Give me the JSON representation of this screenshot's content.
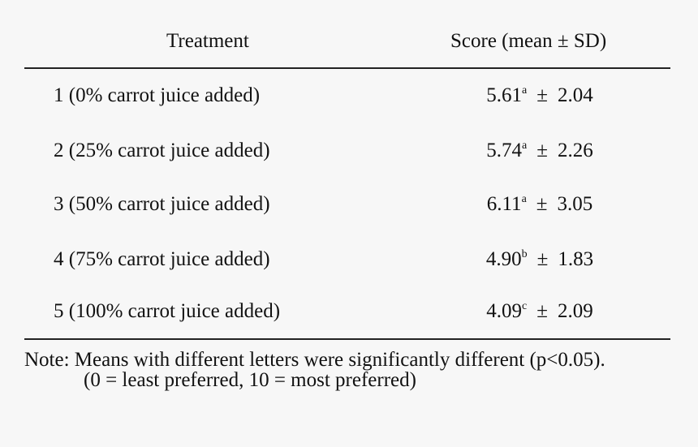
{
  "table": {
    "headers": [
      "Treatment",
      "Score (mean ± SD)"
    ],
    "plus_minus": "±",
    "rows": [
      {
        "treatment": "1 (0% carrot juice added)",
        "mean": "5.61",
        "letter": "a",
        "sd": "2.04"
      },
      {
        "treatment": "2 (25% carrot juice added)",
        "mean": "5.74",
        "letter": "a",
        "sd": "2.26"
      },
      {
        "treatment": "3 (50% carrot juice added)",
        "mean": "6.11",
        "letter": "a",
        "sd": "3.05"
      },
      {
        "treatment": "4 (75% carrot juice added)",
        "mean": "4.90",
        "letter": "b",
        "sd": "1.83"
      },
      {
        "treatment": "5 (100% carrot juice added)",
        "mean": "4.09",
        "letter": "c",
        "sd": "2.09"
      }
    ],
    "note": [
      "Note: Means with different letters were significantly different (p<0.05).",
      "(0 = least preferred, 10 = most preferred)"
    ]
  }
}
